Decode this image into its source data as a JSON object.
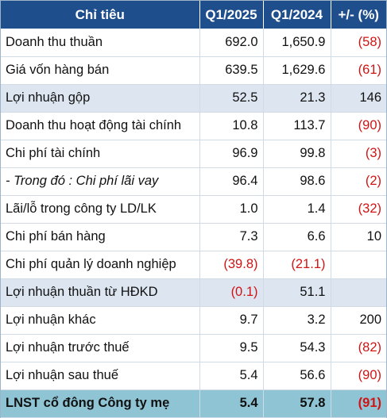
{
  "header": {
    "col_item": "Chỉ tiêu",
    "col_q1_2025": "Q1/2025",
    "col_q1_2024": "Q1/2024",
    "col_change": "+/- (%)"
  },
  "rows": [
    {
      "label": "Doanh thu thuần",
      "q2025": "692.0",
      "q2024": "1,650.9",
      "change": "(58)",
      "neg2025": false,
      "neg2024": false,
      "negChange": true,
      "style": "normal"
    },
    {
      "label": "Giá vốn hàng bán",
      "q2025": "639.5",
      "q2024": "1,629.6",
      "change": "(61)",
      "neg2025": false,
      "neg2024": false,
      "negChange": true,
      "style": "normal"
    },
    {
      "label": "Lợi nhuận gộp",
      "q2025": "52.5",
      "q2024": "21.3",
      "change": "146",
      "neg2025": false,
      "neg2024": false,
      "negChange": false,
      "style": "hl"
    },
    {
      "label": "Doanh thu hoạt động tài chính",
      "q2025": "10.8",
      "q2024": "113.7",
      "change": "(90)",
      "neg2025": false,
      "neg2024": false,
      "negChange": true,
      "style": "normal"
    },
    {
      "label": "Chi phí tài chính",
      "q2025": "96.9",
      "q2024": "99.8",
      "change": "(3)",
      "neg2025": false,
      "neg2024": false,
      "negChange": true,
      "style": "normal"
    },
    {
      "label": "- Trong đó : Chi phí lãi vay",
      "q2025": "96.4",
      "q2024": "98.6",
      "change": "(2)",
      "neg2025": false,
      "neg2024": false,
      "negChange": true,
      "style": "italic"
    },
    {
      "label": "Lãi/lỗ trong công ty LD/LK",
      "q2025": "1.0",
      "q2024": "1.4",
      "change": "(32)",
      "neg2025": false,
      "neg2024": false,
      "negChange": true,
      "style": "normal"
    },
    {
      "label": "Chi phí bán hàng",
      "q2025": "7.3",
      "q2024": "6.6",
      "change": "10",
      "neg2025": false,
      "neg2024": false,
      "negChange": false,
      "style": "normal"
    },
    {
      "label": "Chi phí quản lý doanh nghiệp",
      "q2025": "(39.8)",
      "q2024": "(21.1)",
      "change": "",
      "neg2025": true,
      "neg2024": true,
      "negChange": false,
      "style": "normal"
    },
    {
      "label": "Lợi nhuận thuần từ HĐKD",
      "q2025": "(0.1)",
      "q2024": "51.1",
      "change": "",
      "neg2025": true,
      "neg2024": false,
      "negChange": false,
      "style": "hl"
    },
    {
      "label": "Lợi nhuận khác",
      "q2025": "9.7",
      "q2024": "3.2",
      "change": "200",
      "neg2025": false,
      "neg2024": false,
      "negChange": false,
      "style": "normal"
    },
    {
      "label": "Lợi nhuận trước thuế",
      "q2025": "9.5",
      "q2024": "54.3",
      "change": "(82)",
      "neg2025": false,
      "neg2024": false,
      "negChange": true,
      "style": "normal"
    },
    {
      "label": "Lợi nhuận sau thuế",
      "q2025": "5.4",
      "q2024": "56.6",
      "change": "(90)",
      "neg2025": false,
      "neg2024": false,
      "negChange": true,
      "style": "normal"
    },
    {
      "label": "LNST cổ đông Công ty mẹ",
      "q2025": "5.4",
      "q2024": "57.8",
      "change": "(91)",
      "neg2025": false,
      "neg2024": false,
      "negChange": true,
      "style": "total"
    }
  ]
}
